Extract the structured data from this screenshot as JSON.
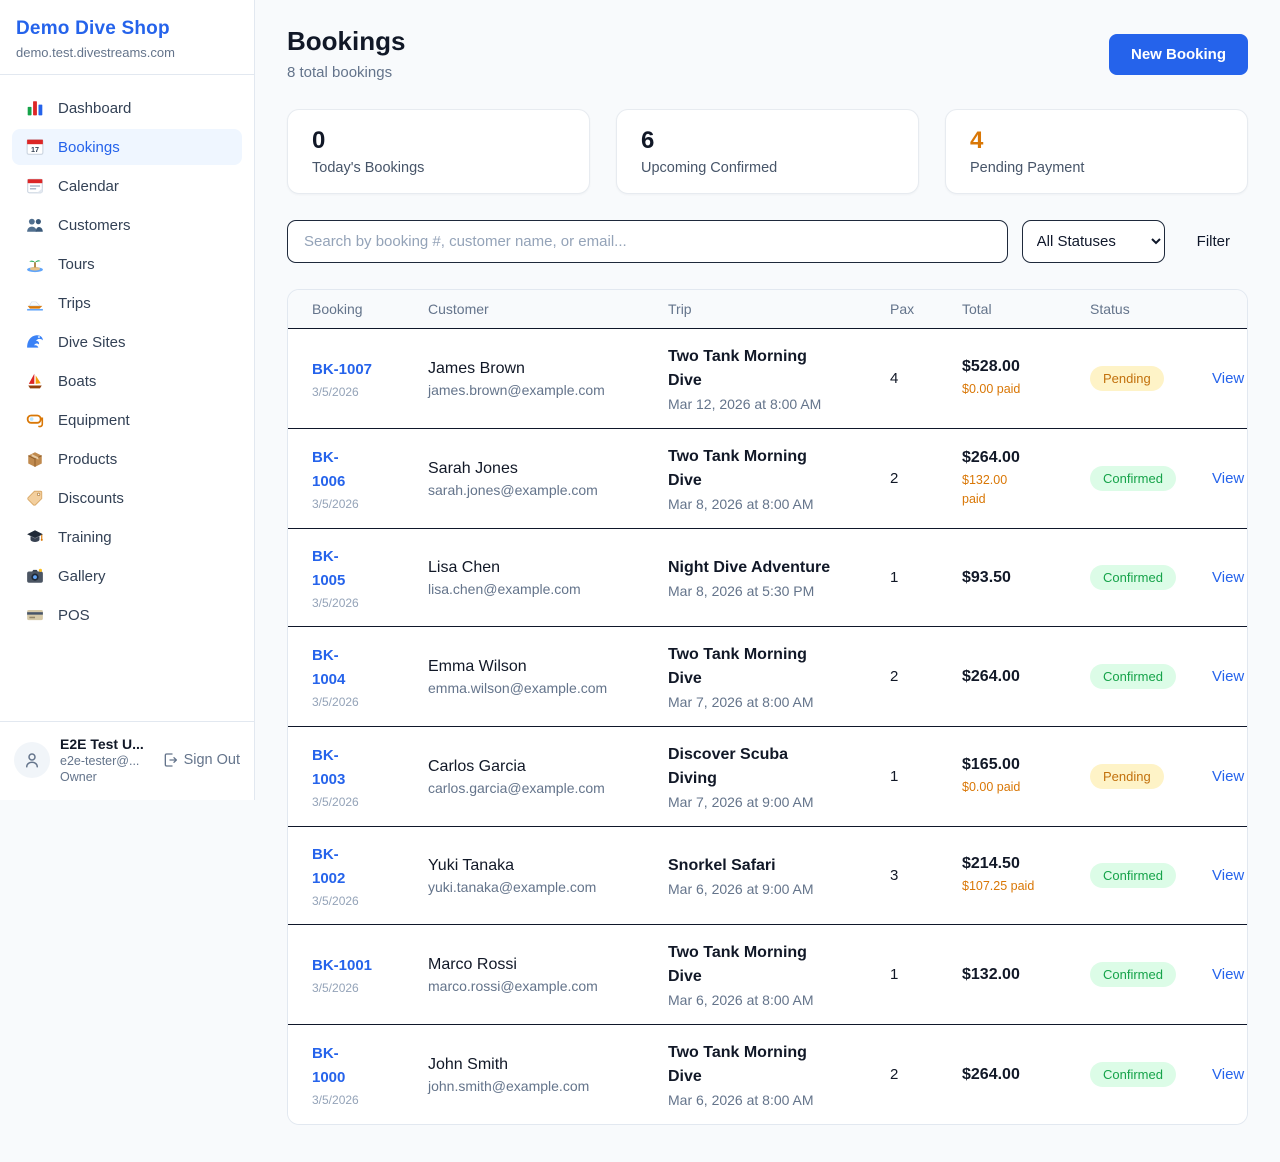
{
  "sidebar": {
    "brand": {
      "name": "Demo Dive Shop",
      "domain": "demo.test.divestreams.com"
    },
    "nav": [
      {
        "icon": "bar-chart",
        "label": "Dashboard",
        "active": false
      },
      {
        "icon": "calendar",
        "label": "Bookings",
        "active": true
      },
      {
        "icon": "tear-off-calendar",
        "label": "Calendar",
        "active": false
      },
      {
        "icon": "people",
        "label": "Customers",
        "active": false
      },
      {
        "icon": "desert-island",
        "label": "Tours",
        "active": false
      },
      {
        "icon": "speedboat",
        "label": "Trips",
        "active": false
      },
      {
        "icon": "wave",
        "label": "Dive Sites",
        "active": false
      },
      {
        "icon": "sailboat",
        "label": "Boats",
        "active": false
      },
      {
        "icon": "diving-mask",
        "label": "Equipment",
        "active": false
      },
      {
        "icon": "package",
        "label": "Products",
        "active": false
      },
      {
        "icon": "tag",
        "label": "Discounts",
        "active": false
      },
      {
        "icon": "graduation-cap",
        "label": "Training",
        "active": false
      },
      {
        "icon": "camera",
        "label": "Gallery",
        "active": false
      },
      {
        "icon": "credit-card",
        "label": "POS",
        "active": false
      }
    ],
    "user": {
      "name": "E2E Test U...",
      "email": "e2e-tester@...",
      "role": "Owner",
      "sign_out_label": "Sign Out"
    }
  },
  "header": {
    "title": "Bookings",
    "subtitle": "8 total bookings",
    "new_booking_label": "New Booking"
  },
  "stats": [
    {
      "value": "0",
      "label": "Today's Bookings",
      "color": "#111827"
    },
    {
      "value": "6",
      "label": "Upcoming Confirmed",
      "color": "#111827"
    },
    {
      "value": "4",
      "label": "Pending Payment",
      "color": "#d97706"
    }
  ],
  "controls": {
    "search_placeholder": "Search by booking #, customer name, or email...",
    "status_select_value": "All Statuses",
    "filter_label": "Filter"
  },
  "table": {
    "columns": [
      "Booking",
      "Customer",
      "Trip",
      "Pax",
      "Total",
      "Status",
      ""
    ],
    "rows": [
      {
        "booking_number": "BK-1007",
        "booking_wrapped": false,
        "booking_date": "3/5/2026",
        "customer_name": "James Brown",
        "customer_email": "james.brown@example.com",
        "trip_name": "Two Tank Morning Dive",
        "trip_datetime": "Mar 12, 2026 at 8:00 AM",
        "pax": "4",
        "total": "$528.00",
        "paid": "$0.00 paid",
        "paid_wrapped": false,
        "status": "Pending",
        "action": "View"
      },
      {
        "booking_number": "BK-1006",
        "booking_wrapped": true,
        "booking_date": "3/5/2026",
        "customer_name": "Sarah Jones",
        "customer_email": "sarah.jones@example.com",
        "trip_name": "Two Tank Morning Dive",
        "trip_datetime": "Mar 8, 2026 at 8:00 AM",
        "pax": "2",
        "total": "$264.00",
        "paid": "$132.00 paid",
        "paid_wrapped": true,
        "status": "Confirmed",
        "action": "View"
      },
      {
        "booking_number": "BK-1005",
        "booking_wrapped": true,
        "booking_date": "3/5/2026",
        "customer_name": "Lisa Chen",
        "customer_email": "lisa.chen@example.com",
        "trip_name": "Night Dive Adventure",
        "trip_datetime": "Mar 8, 2026 at 5:30 PM",
        "pax": "1",
        "total": "$93.50",
        "paid": null,
        "paid_wrapped": false,
        "status": "Confirmed",
        "action": "View"
      },
      {
        "booking_number": "BK-1004",
        "booking_wrapped": true,
        "booking_date": "3/5/2026",
        "customer_name": "Emma Wilson",
        "customer_email": "emma.wilson@example.com",
        "trip_name": "Two Tank Morning Dive",
        "trip_datetime": "Mar 7, 2026 at 8:00 AM",
        "pax": "2",
        "total": "$264.00",
        "paid": null,
        "paid_wrapped": false,
        "status": "Confirmed",
        "action": "View"
      },
      {
        "booking_number": "BK-1003",
        "booking_wrapped": true,
        "booking_date": "3/5/2026",
        "customer_name": "Carlos Garcia",
        "customer_email": "carlos.garcia@example.com",
        "trip_name": "Discover Scuba Diving",
        "trip_datetime": "Mar 7, 2026 at 9:00 AM",
        "pax": "1",
        "total": "$165.00",
        "paid": "$0.00 paid",
        "paid_wrapped": false,
        "status": "Pending",
        "action": "View"
      },
      {
        "booking_number": "BK-1002",
        "booking_wrapped": true,
        "booking_date": "3/5/2026",
        "customer_name": "Yuki Tanaka",
        "customer_email": "yuki.tanaka@example.com",
        "trip_name": "Snorkel Safari",
        "trip_datetime": "Mar 6, 2026 at 9:00 AM",
        "pax": "3",
        "total": "$214.50",
        "paid": "$107.25 paid",
        "paid_wrapped": false,
        "status": "Confirmed",
        "action": "View"
      },
      {
        "booking_number": "BK-1001",
        "booking_wrapped": false,
        "booking_date": "3/5/2026",
        "customer_name": "Marco Rossi",
        "customer_email": "marco.rossi@example.com",
        "trip_name": "Two Tank Morning Dive",
        "trip_datetime": "Mar 6, 2026 at 8:00 AM",
        "pax": "1",
        "total": "$132.00",
        "paid": null,
        "paid_wrapped": false,
        "status": "Confirmed",
        "action": "View"
      },
      {
        "booking_number": "BK-1000",
        "booking_wrapped": true,
        "booking_date": "3/5/2026",
        "customer_name": "John Smith",
        "customer_email": "john.smith@example.com",
        "trip_name": "Two Tank Morning Dive",
        "trip_datetime": "Mar 6, 2026 at 8:00 AM",
        "pax": "2",
        "total": "$264.00",
        "paid": null,
        "paid_wrapped": false,
        "status": "Confirmed",
        "action": "View"
      }
    ]
  },
  "colors": {
    "accent_blue": "#2563eb",
    "pending_bg": "#fef3c7",
    "pending_text": "#c2710d",
    "confirmed_bg": "#dcfce7",
    "confirmed_text": "#16a34a",
    "paid_orange": "#d97706",
    "page_bg": "#f8fafc"
  }
}
